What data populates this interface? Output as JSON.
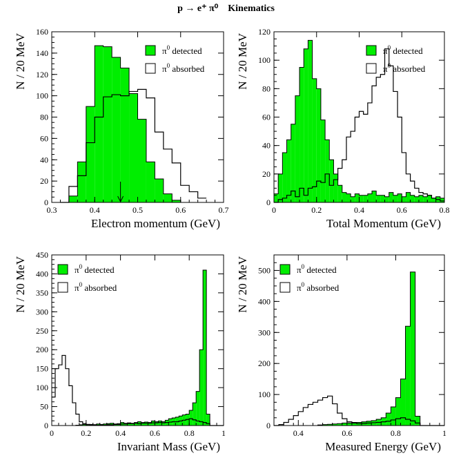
{
  "figure": {
    "title_main": "p → e⁺ π⁰",
    "title_suffix": "Kinematics"
  },
  "chart_data": [
    {
      "type": "histogram",
      "xlabel": "Electron momentum (GeV)",
      "ylabel": "N / 20 MeV",
      "xlim": [
        0.3,
        0.7
      ],
      "ylim": [
        0,
        160
      ],
      "xticks": [
        "0.3",
        "0.4",
        "0.5",
        "0.6",
        "0.7"
      ],
      "yticks": [
        "0",
        "20",
        "40",
        "60",
        "80",
        "100",
        "120",
        "140",
        "160"
      ],
      "legend": "top-right",
      "annotation_arrow_x": 0.46,
      "bin_start": 0.32,
      "bin_width": 0.02,
      "series": [
        {
          "name": "π⁰ detected",
          "style": "filled",
          "color": "#00ee00",
          "values": [
            0,
            6,
            38,
            90,
            147,
            146,
            136,
            126,
            102,
            78,
            38,
            22,
            8,
            2,
            0,
            0,
            0
          ]
        },
        {
          "name": "π⁰ absorbed",
          "style": "outline",
          "color": "#000000",
          "values": [
            0,
            15,
            25,
            56,
            80,
            99,
            101,
            100,
            104,
            106,
            98,
            66,
            50,
            37,
            16,
            10,
            4
          ]
        }
      ]
    },
    {
      "type": "histogram",
      "xlabel": "Total Momentum (GeV)",
      "ylabel": "N / 20 MeV",
      "xlim": [
        0,
        0.8
      ],
      "ylim": [
        0,
        120
      ],
      "xticks": [
        "0",
        "0.2",
        "0.4",
        "0.6",
        "0.8"
      ],
      "yticks": [
        "0",
        "20",
        "40",
        "60",
        "80",
        "100",
        "120"
      ],
      "legend": "top-right",
      "bin_start": 0.0,
      "bin_width": 0.02,
      "series": [
        {
          "name": "π⁰ detected",
          "style": "filled",
          "color": "#00ee00",
          "values": [
            6,
            20,
            35,
            44,
            55,
            75,
            95,
            108,
            114,
            87,
            80,
            58,
            44,
            30,
            20,
            12,
            7,
            6,
            4,
            6,
            5,
            5,
            6,
            8,
            5,
            5,
            4,
            7,
            5,
            6,
            4,
            7,
            5,
            4,
            5,
            4,
            5,
            3,
            4,
            3
          ]
        },
        {
          "name": "π⁰ absorbed",
          "style": "outline",
          "color": "#000000",
          "values": [
            0,
            2,
            3,
            5,
            8,
            4,
            10,
            5,
            10,
            11,
            15,
            14,
            20,
            12,
            16,
            24,
            30,
            46,
            50,
            60,
            64,
            62,
            70,
            82,
            88,
            90,
            108,
            96,
            78,
            60,
            35,
            20,
            15,
            10,
            7,
            6,
            5,
            3,
            2,
            1
          ]
        }
      ]
    },
    {
      "type": "histogram",
      "xlabel": "Invariant Mass (GeV)",
      "ylabel": "N / 20 MeV",
      "xlim": [
        0,
        1
      ],
      "ylim": [
        0,
        450
      ],
      "xticks": [
        "0",
        "0.2",
        "0.4",
        "0.6",
        "0.8",
        "1"
      ],
      "yticks": [
        "0",
        "50",
        "100",
        "150",
        "200",
        "250",
        "300",
        "350",
        "400",
        "450"
      ],
      "legend": "top-left",
      "bin_start": 0.0,
      "bin_width": 0.02,
      "series": [
        {
          "name": "π⁰ detected",
          "style": "filled",
          "color": "#00ee00",
          "values": [
            0,
            0,
            0,
            0,
            0,
            0,
            0,
            1,
            2,
            3,
            2,
            3,
            2,
            4,
            3,
            4,
            5,
            6,
            4,
            5,
            8,
            6,
            7,
            6,
            8,
            10,
            8,
            9,
            8,
            12,
            10,
            12,
            10,
            14,
            18,
            20,
            22,
            25,
            28,
            30,
            40,
            60,
            90,
            200,
            410,
            30,
            0,
            0,
            0,
            0
          ]
        },
        {
          "name": "π⁰ absorbed",
          "style": "outline",
          "color": "#000000",
          "values": [
            75,
            150,
            160,
            185,
            150,
            105,
            60,
            30,
            10,
            5,
            3,
            2,
            2,
            1,
            1,
            1,
            2,
            2,
            3,
            3,
            4,
            4,
            5,
            5,
            6,
            5,
            6,
            6,
            6,
            7,
            7,
            8,
            7,
            8,
            9,
            10,
            10,
            12,
            14,
            16,
            18,
            15,
            12,
            10,
            8,
            5,
            0,
            0,
            0,
            0
          ]
        }
      ]
    },
    {
      "type": "histogram",
      "xlabel": "Measured Energy (GeV)",
      "ylabel": "N / 20 MeV",
      "xlim": [
        0.3,
        1
      ],
      "ylim": [
        0,
        550
      ],
      "xticks": [
        "0.4",
        "0.6",
        "0.8",
        "1"
      ],
      "yticks": [
        "0",
        "100",
        "200",
        "300",
        "400",
        "500"
      ],
      "legend": "top-left",
      "bin_start": 0.3,
      "bin_width": 0.02,
      "series": [
        {
          "name": "π⁰ detected",
          "style": "filled",
          "color": "#00ee00",
          "values": [
            0,
            0,
            0,
            0,
            0,
            0,
            0,
            0,
            0,
            2,
            3,
            4,
            5,
            6,
            8,
            8,
            10,
            10,
            12,
            14,
            16,
            20,
            25,
            40,
            60,
            90,
            150,
            320,
            495,
            30,
            0,
            0,
            0,
            0,
            0
          ]
        },
        {
          "name": "π⁰ absorbed",
          "style": "outline",
          "color": "#000000",
          "values": [
            0,
            3,
            10,
            20,
            32,
            45,
            58,
            68,
            75,
            82,
            90,
            95,
            70,
            40,
            22,
            12,
            8,
            6,
            7,
            8,
            9,
            10,
            12,
            14,
            18,
            22,
            25,
            20,
            15,
            8,
            0,
            0,
            0,
            0,
            0
          ]
        }
      ]
    }
  ]
}
